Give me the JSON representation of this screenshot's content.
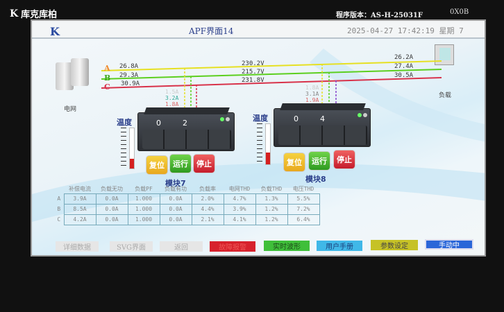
{
  "bezel": {
    "brand": "库克库柏",
    "version": "程序版本：AS-H-25031F",
    "code": "0X0B"
  },
  "header": {
    "logo": "K",
    "title": "APF界面14",
    "datetime": "2025-04-27 17:42:19",
    "weekday": "星期  7"
  },
  "grid": {
    "label": "电网",
    "phases": [
      "A",
      "B",
      "C"
    ],
    "currents": [
      "26.8A",
      "29.3A",
      "30.9A"
    ],
    "voltages": [
      "230.2V",
      "215.7V",
      "231.8V"
    ],
    "colors": {
      "A": "#e6e022",
      "B": "#5ccf1e",
      "C": "#d8324a"
    }
  },
  "load": {
    "label": "负载",
    "currents": [
      "26.2A",
      "27.4A",
      "30.5A"
    ]
  },
  "modules": [
    {
      "name": "模块7",
      "display": [
        "0",
        "2"
      ],
      "temp_label": "温度",
      "temp_percent": 25,
      "branch": [
        "1.5A",
        "3.2A",
        "1.8A"
      ],
      "buttons": [
        "复位",
        "运行",
        "停止"
      ]
    },
    {
      "name": "模块8",
      "display": [
        "0",
        "4"
      ],
      "temp_label": "温度",
      "temp_percent": 30,
      "branch": [
        "1.8A",
        "3.1A",
        "1.9A"
      ],
      "buttons": [
        "复位",
        "运行",
        "停止"
      ]
    }
  ],
  "table": {
    "headers": [
      "补偿电流",
      "负载无功",
      "负载PF",
      "负载有功",
      "负载率",
      "电网THD",
      "负载THD",
      "电压THD"
    ],
    "rows": [
      {
        "label": "A",
        "cells": [
          "3.9A",
          "0.0A",
          "1.000",
          "0.0A",
          "2.0%",
          "4.7%",
          "1.3%",
          "5.5%"
        ]
      },
      {
        "label": "B",
        "cells": [
          "8.5A",
          "0.0A",
          "1.000",
          "0.0A",
          "4.4%",
          "3.9%",
          "1.2%",
          "7.2%"
        ]
      },
      {
        "label": "C",
        "cells": [
          "4.2A",
          "0.0A",
          "1.000",
          "0.0A",
          "2.1%",
          "4.1%",
          "1.2%",
          "6.4%"
        ]
      }
    ]
  },
  "footer": {
    "details": "详细数据",
    "svg": "SVG界面",
    "back": "返回",
    "alarm": "故障报警",
    "waveform": "实时波形",
    "manual": "用户手册",
    "params": "参数设定",
    "mode": "手动中"
  }
}
